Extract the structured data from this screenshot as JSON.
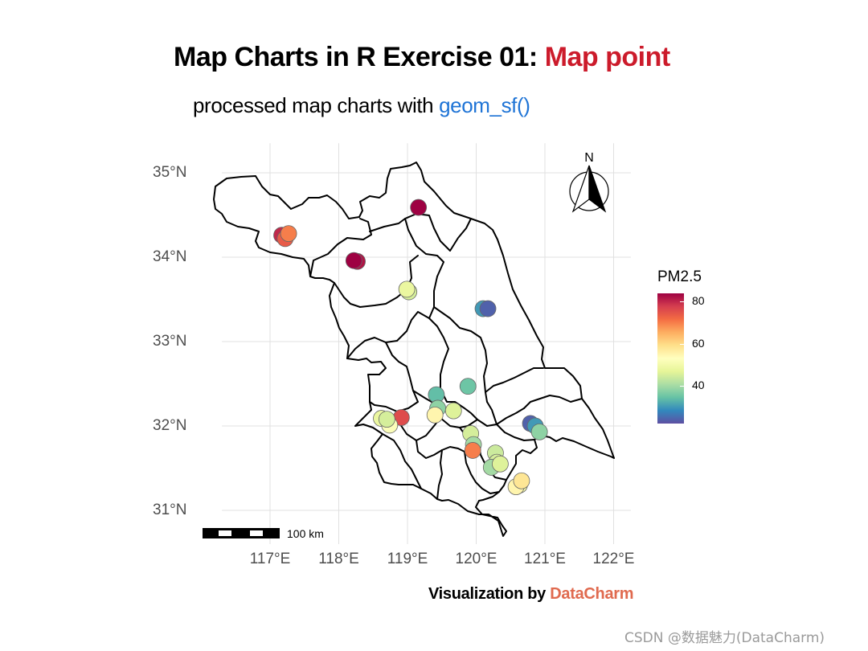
{
  "title": {
    "main": "Map Charts in R Exercise 01: ",
    "highlight": "Map point",
    "highlight_color": "#cc1b2b"
  },
  "subtitle": {
    "main": "processed map charts with ",
    "highlight": "geom_sf()",
    "highlight_color": "#1f74d6"
  },
  "caption": {
    "main": "Visualization by ",
    "highlight": "DataCharm",
    "highlight_color": "#e06a4f"
  },
  "watermark": "CSDN @数据魅力(DataCharm)",
  "north_arrow_label": "N",
  "scale_bar_label": "100 km",
  "legend": {
    "title": "PM2.5",
    "palette": "Spectral (reversed)",
    "ticks": [
      "80",
      "60",
      "40"
    ],
    "tick_values": [
      80,
      60,
      40
    ],
    "range": [
      22,
      84
    ]
  },
  "map": {
    "region_outline": "Jiangsu province, prefecture-level city boundaries",
    "gridlines": true
  },
  "chart_data": {
    "type": "scatter",
    "title": "Map Charts in R Exercise 01: Map point",
    "subtitle": "processed map charts with geom_sf()",
    "x_ticks": [
      "117°E",
      "118°E",
      "119°E",
      "120°E",
      "121°E",
      "122°E"
    ],
    "x_tick_values": [
      117,
      118,
      119,
      120,
      121,
      122
    ],
    "y_ticks": [
      "35°N",
      "34°N",
      "33°N",
      "32°N",
      "31°N"
    ],
    "y_tick_values": [
      35,
      34,
      33,
      32,
      31
    ],
    "xlim": [
      116.3,
      122.25
    ],
    "ylim": [
      30.6,
      35.35
    ],
    "color_variable": "PM2.5",
    "points": [
      {
        "lon": 117.17,
        "lat": 34.26,
        "pm25": 80
      },
      {
        "lon": 117.22,
        "lat": 34.22,
        "pm25": 74
      },
      {
        "lon": 117.27,
        "lat": 34.28,
        "pm25": 70
      },
      {
        "lon": 119.16,
        "lat": 34.59,
        "pm25": 84
      },
      {
        "lon": 118.27,
        "lat": 33.95,
        "pm25": 82
      },
      {
        "lon": 118.22,
        "lat": 33.96,
        "pm25": 85
      },
      {
        "lon": 119.02,
        "lat": 33.59,
        "pm25": 45
      },
      {
        "lon": 118.99,
        "lat": 33.62,
        "pm25": 48
      },
      {
        "lon": 120.1,
        "lat": 33.39,
        "pm25": 30
      },
      {
        "lon": 120.17,
        "lat": 33.39,
        "pm25": 24
      },
      {
        "lon": 119.88,
        "lat": 32.47,
        "pm25": 35
      },
      {
        "lon": 119.42,
        "lat": 32.37,
        "pm25": 34
      },
      {
        "lon": 119.44,
        "lat": 32.21,
        "pm25": 38
      },
      {
        "lon": 119.67,
        "lat": 32.18,
        "pm25": 46
      },
      {
        "lon": 119.4,
        "lat": 32.13,
        "pm25": 55
      },
      {
        "lon": 118.91,
        "lat": 32.1,
        "pm25": 76
      },
      {
        "lon": 118.62,
        "lat": 32.09,
        "pm25": 48
      },
      {
        "lon": 118.74,
        "lat": 32.01,
        "pm25": 52
      },
      {
        "lon": 118.7,
        "lat": 32.08,
        "pm25": 45
      },
      {
        "lon": 120.79,
        "lat": 32.03,
        "pm25": 24
      },
      {
        "lon": 120.86,
        "lat": 32.0,
        "pm25": 30
      },
      {
        "lon": 120.92,
        "lat": 31.93,
        "pm25": 38
      },
      {
        "lon": 119.92,
        "lat": 31.91,
        "pm25": 45
      },
      {
        "lon": 119.96,
        "lat": 31.78,
        "pm25": 40
      },
      {
        "lon": 119.95,
        "lat": 31.71,
        "pm25": 70
      },
      {
        "lon": 120.28,
        "lat": 31.68,
        "pm25": 44
      },
      {
        "lon": 120.3,
        "lat": 31.57,
        "pm25": 45
      },
      {
        "lon": 120.22,
        "lat": 31.51,
        "pm25": 40
      },
      {
        "lon": 120.35,
        "lat": 31.55,
        "pm25": 46
      },
      {
        "lon": 120.63,
        "lat": 31.3,
        "pm25": 50
      },
      {
        "lon": 120.58,
        "lat": 31.28,
        "pm25": 55
      },
      {
        "lon": 120.66,
        "lat": 31.35,
        "pm25": 58
      }
    ]
  }
}
